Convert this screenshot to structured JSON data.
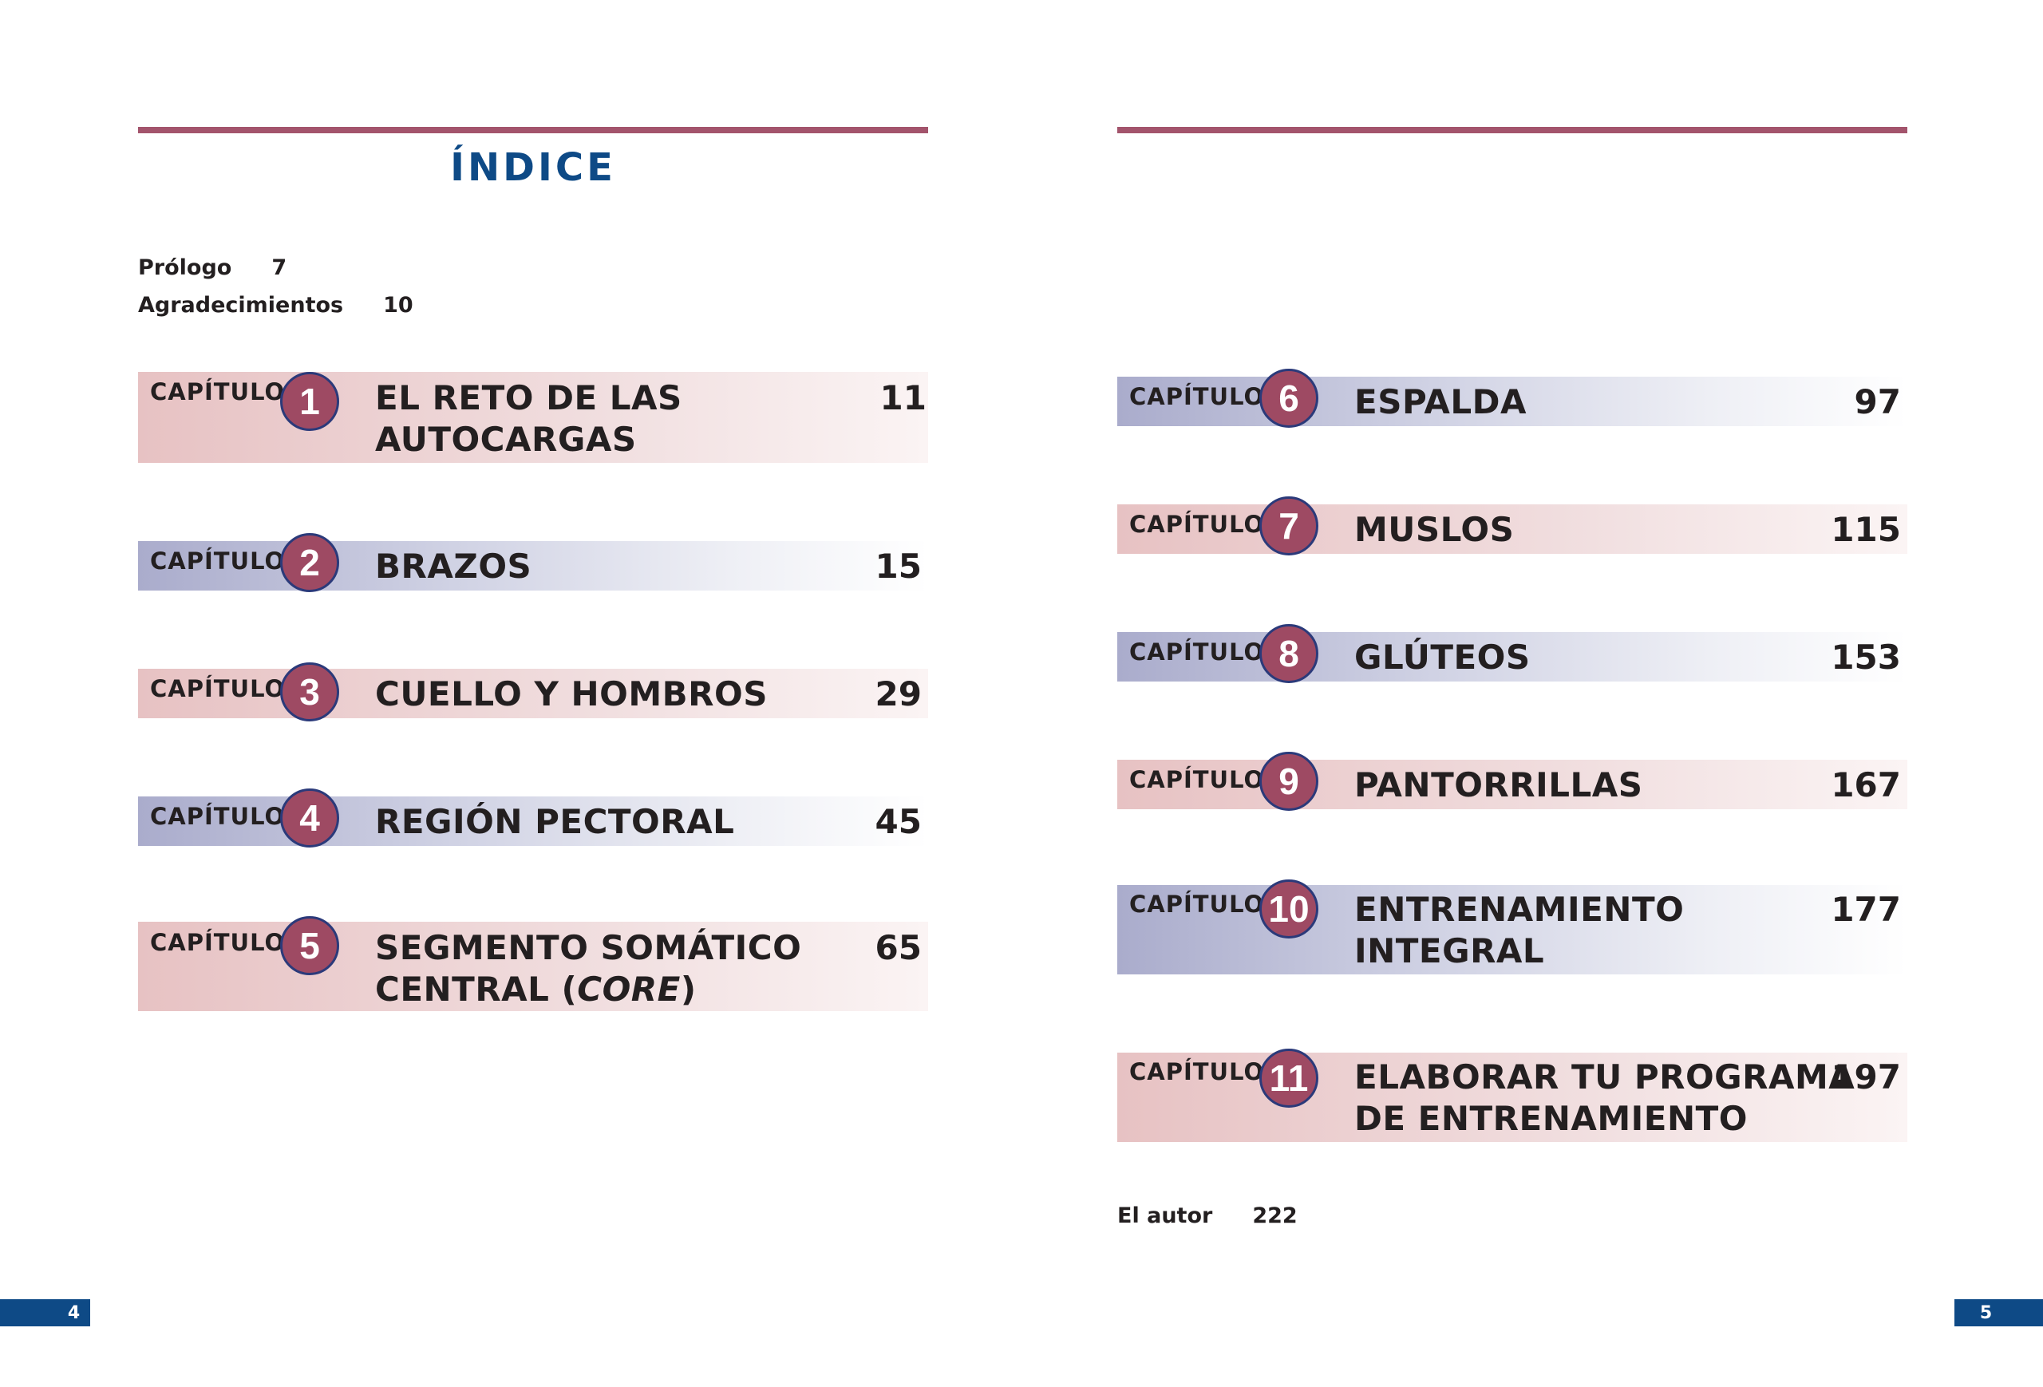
{
  "title": "ÍNDICE",
  "front_matter": [
    {
      "label": "Prólogo",
      "page": "7"
    },
    {
      "label": "Agradecimientos",
      "page": "10"
    }
  ],
  "back_matter": [
    {
      "label": "El autor",
      "page": "222"
    }
  ],
  "chapter_label": "CAPÍTULO",
  "chapters": [
    {
      "number": "1",
      "title": "EL RETO DE LAS\nAUTOCARGAS",
      "page": "11",
      "color": "pink"
    },
    {
      "number": "2",
      "title": "BRAZOS",
      "page": "15",
      "color": "blue"
    },
    {
      "number": "3",
      "title": "CUELLO Y HOMBROS",
      "page": "29",
      "color": "pink"
    },
    {
      "number": "4",
      "title": "REGIÓN PECTORAL",
      "page": "45",
      "color": "blue"
    },
    {
      "number": "5",
      "title": "SEGMENTO SOMÁTICO\nCENTRAL (CORE)",
      "page": "65",
      "color": "pink"
    },
    {
      "number": "6",
      "title": "ESPALDA",
      "page": "97",
      "color": "blue"
    },
    {
      "number": "7",
      "title": "MUSLOS",
      "page": "115",
      "color": "pink"
    },
    {
      "number": "8",
      "title": "GLÚTEOS",
      "page": "153",
      "color": "blue"
    },
    {
      "number": "9",
      "title": "PANTORRILLAS",
      "page": "167",
      "color": "pink"
    },
    {
      "number": "10",
      "title": "ENTRENAMIENTO\nINTEGRAL",
      "page": "177",
      "color": "blue"
    },
    {
      "number": "11",
      "title": "ELABORAR TU PROGRAMA\nDE ENTRENAMIENTO",
      "page": "197",
      "color": "pink"
    }
  ],
  "page_numbers": {
    "left": "4",
    "right": "5"
  },
  "colors": {
    "rule": "#a3546c",
    "title": "#0e4a86",
    "circle": "#9e4a63",
    "footer": "#0e4a86"
  }
}
